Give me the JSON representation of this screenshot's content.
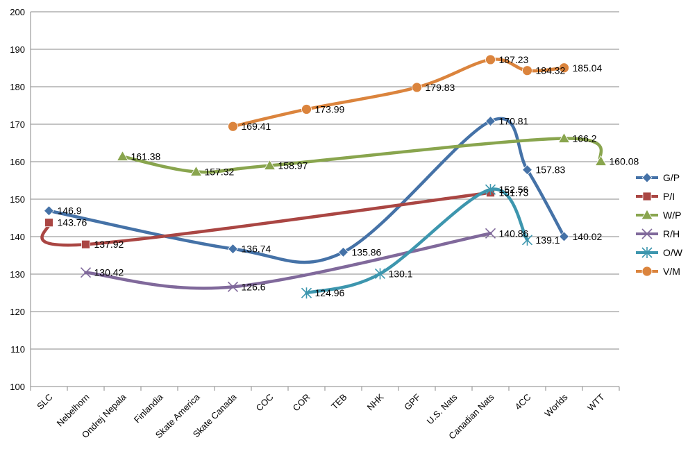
{
  "chart_data": {
    "type": "line",
    "title": "",
    "xlabel": "",
    "ylabel": "",
    "ylim": [
      100,
      200
    ],
    "yticks": [
      100,
      110,
      120,
      130,
      140,
      150,
      160,
      170,
      180,
      190,
      200
    ],
    "grid": "horizontal",
    "legend": "right",
    "smooth": true,
    "categories": [
      "SLC",
      "Nebelhorn",
      "Ondrej Nepala",
      "Finlandia",
      "Skate America",
      "Skate Canada",
      "COC",
      "COR",
      "TEB",
      "NHK",
      "GPF",
      "U.S. Nats",
      "Canadian Nats",
      "4CC",
      "Worlds",
      "WTT"
    ],
    "series": [
      {
        "name": "G/P",
        "color": "#4572A7",
        "marker": "diamond",
        "values": [
          146.9,
          null,
          null,
          null,
          null,
          136.74,
          null,
          null,
          135.86,
          null,
          null,
          null,
          170.81,
          157.83,
          140.02,
          null
        ],
        "labels": [
          "146.9",
          null,
          null,
          null,
          null,
          "136.74",
          null,
          null,
          "135.86",
          null,
          null,
          null,
          "170.81",
          "157.83",
          "140.02",
          null
        ]
      },
      {
        "name": "P/I",
        "color": "#AA4643",
        "marker": "square",
        "values": [
          143.76,
          137.92,
          null,
          null,
          null,
          null,
          null,
          null,
          null,
          null,
          null,
          null,
          151.73,
          null,
          null,
          null
        ],
        "labels": [
          "143.76",
          "137.92",
          null,
          null,
          null,
          null,
          null,
          null,
          null,
          null,
          null,
          null,
          "151.73",
          null,
          null,
          null
        ]
      },
      {
        "name": "W/P",
        "color": "#89A54E",
        "marker": "triangle",
        "values": [
          null,
          null,
          161.38,
          null,
          157.32,
          null,
          158.97,
          null,
          null,
          null,
          null,
          null,
          null,
          null,
          166.2,
          160.08
        ],
        "labels": [
          null,
          null,
          "161.38",
          null,
          "157.32",
          null,
          "158.97",
          null,
          null,
          null,
          null,
          null,
          null,
          null,
          "166.2",
          "160.08"
        ]
      },
      {
        "name": "R/H",
        "color": "#80699B",
        "marker": "x",
        "values": [
          null,
          130.42,
          null,
          null,
          null,
          126.6,
          null,
          null,
          null,
          null,
          null,
          null,
          140.86,
          null,
          null,
          null
        ],
        "labels": [
          null,
          "130.42",
          null,
          null,
          null,
          "126.6",
          null,
          null,
          null,
          null,
          null,
          null,
          "140.86",
          null,
          null,
          null
        ]
      },
      {
        "name": "O/W",
        "color": "#3D96AE",
        "marker": "star",
        "values": [
          null,
          null,
          null,
          null,
          null,
          null,
          null,
          124.96,
          null,
          130.1,
          null,
          null,
          152.56,
          139.1,
          null,
          null
        ],
        "labels": [
          null,
          null,
          null,
          null,
          null,
          null,
          null,
          "124.96",
          null,
          "130.1",
          null,
          null,
          "152.56",
          "139.1",
          null,
          null
        ]
      },
      {
        "name": "V/M",
        "color": "#DB843D",
        "marker": "circle",
        "values": [
          null,
          null,
          null,
          null,
          null,
          169.41,
          null,
          173.99,
          null,
          null,
          179.83,
          null,
          187.23,
          184.32,
          185.04,
          null
        ],
        "labels": [
          null,
          null,
          null,
          null,
          null,
          "169.41",
          null,
          "173.99",
          null,
          null,
          "179.83",
          null,
          "187.23",
          "184.32",
          "185.04",
          null
        ]
      }
    ]
  }
}
